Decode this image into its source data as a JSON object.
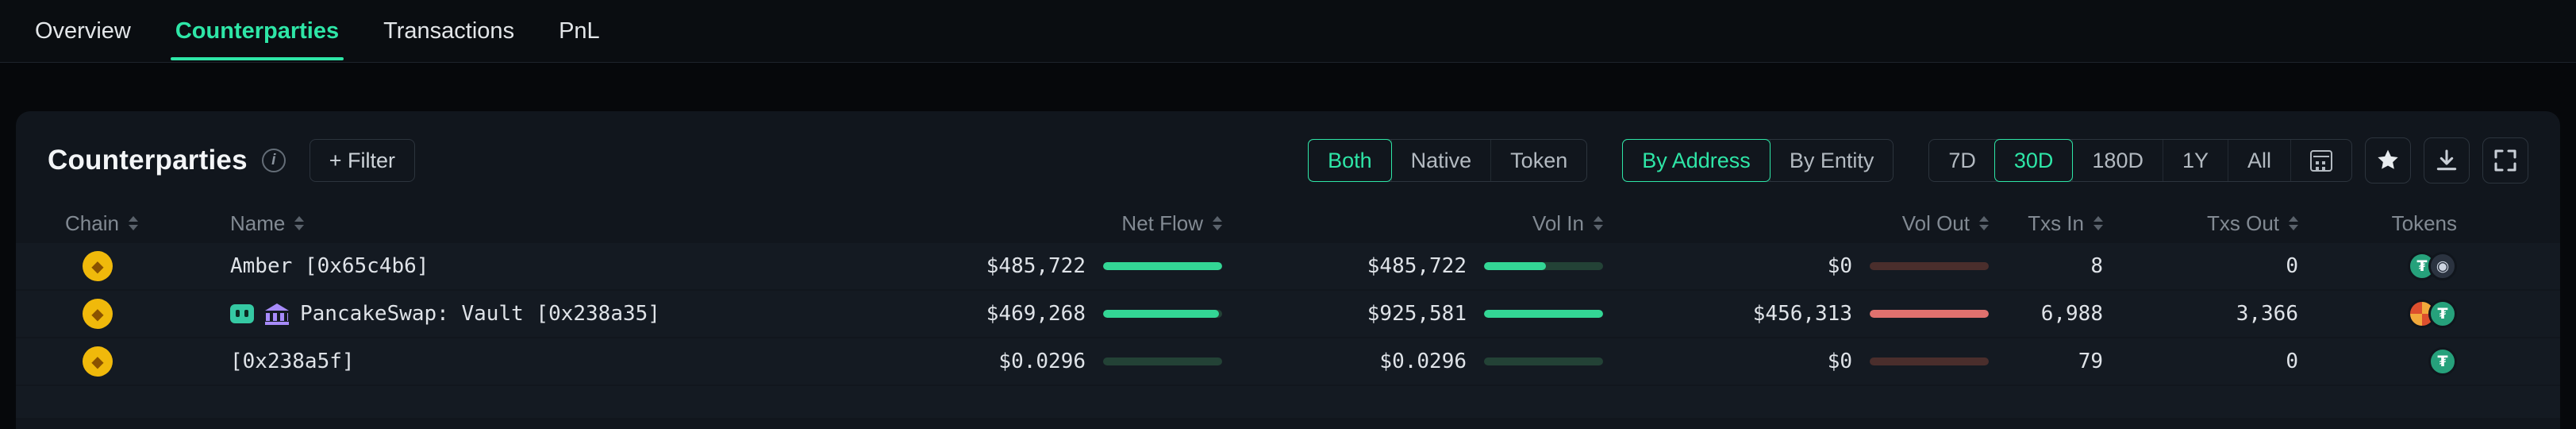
{
  "nav": {
    "items": [
      {
        "label": "Overview",
        "active": false
      },
      {
        "label": "Counterparties",
        "active": true
      },
      {
        "label": "Transactions",
        "active": false
      },
      {
        "label": "PnL",
        "active": false
      }
    ]
  },
  "panel": {
    "title": "Counterparties",
    "filter_label": "+ Filter"
  },
  "toggles": {
    "flow": {
      "options": [
        "Both",
        "Native",
        "Token"
      ],
      "active": "Both"
    },
    "grouping": {
      "options": [
        "By Address",
        "By Entity"
      ],
      "active": "By Address"
    },
    "time": {
      "options": [
        "7D",
        "30D",
        "180D",
        "1Y",
        "All"
      ],
      "active": "30D"
    }
  },
  "action_buttons": [
    {
      "name": "favorite-button",
      "icon": "star-icon"
    },
    {
      "name": "download-button",
      "icon": "download-icon"
    },
    {
      "name": "fullscreen-button",
      "icon": "fullscreen-icon"
    }
  ],
  "colors": {
    "accent_green": "#2ee6a7",
    "inflow_bar": "#33d695",
    "inflow_track": "#234236",
    "outflow_bar": "#e0716e",
    "outflow_track": "#4a2e2c",
    "chain_bnb": "#f0b90b",
    "panel_bg": "#11161d"
  },
  "table": {
    "columns": [
      {
        "label": "Chain",
        "sortable": true
      },
      {
        "label": "Name",
        "sortable": true
      },
      {
        "label": "Net Flow",
        "sortable": true
      },
      {
        "label": "Vol In",
        "sortable": true
      },
      {
        "label": "Vol Out",
        "sortable": true
      },
      {
        "label": "Txs In",
        "sortable": true
      },
      {
        "label": "Txs Out",
        "sortable": true
      },
      {
        "label": "Tokens",
        "sortable": false
      }
    ],
    "rows": [
      {
        "chain": {
          "label": "BNB Chain",
          "glyph": "◆"
        },
        "badges": [],
        "name": "Amber [0x65c4b6]",
        "net_flow": "$485,722",
        "net_flow_pct": 100,
        "vol_in": "$485,722",
        "vol_in_pct": 52,
        "vol_out": "$0",
        "vol_out_pct": 0,
        "txs_in": "8",
        "txs_out": "0",
        "tokens": [
          {
            "name": "usdt-token-icon",
            "label": "USDT",
            "bg": "#26a17b",
            "fg": "#ffffff",
            "glyph": "₮"
          },
          {
            "name": "dark-token-icon",
            "label": "token",
            "bg": "#2b3340",
            "fg": "#cdd5e1",
            "glyph": "◉"
          }
        ]
      },
      {
        "chain": {
          "label": "BNB Chain",
          "glyph": "◆"
        },
        "badges": [
          {
            "name": "bot-badge-icon",
            "label": "bot"
          },
          {
            "name": "protocol-badge-icon",
            "label": "protocol"
          }
        ],
        "name": "PancakeSwap: Vault [0x238a35]",
        "net_flow": "$469,268",
        "net_flow_pct": 97,
        "vol_in": "$925,581",
        "vol_in_pct": 100,
        "vol_out": "$456,313",
        "vol_out_pct": 100,
        "txs_in": "6,988",
        "txs_out": "3,366",
        "tokens": [
          {
            "name": "checkered-token-icon",
            "label": "token",
            "bg": "repeating-conic-gradient(#f2a93b 0deg 90deg, #dd4f2e 90deg 180deg)",
            "fg": "#7a2c12",
            "glyph": ""
          },
          {
            "name": "usdt-token-icon",
            "label": "USDT",
            "bg": "#26a17b",
            "fg": "#ffffff",
            "glyph": "₮"
          }
        ]
      },
      {
        "chain": {
          "label": "BNB Chain",
          "glyph": "◆"
        },
        "badges": [],
        "name": "[0x238a5f]",
        "net_flow": "$0.0296",
        "net_flow_pct": 0,
        "vol_in": "$0.0296",
        "vol_in_pct": 0,
        "vol_out": "$0",
        "vol_out_pct": 0,
        "txs_in": "79",
        "txs_out": "0",
        "tokens": [
          {
            "name": "usdt-token-icon",
            "label": "USDT",
            "bg": "#26a17b",
            "fg": "#ffffff",
            "glyph": "₮"
          }
        ]
      }
    ]
  }
}
